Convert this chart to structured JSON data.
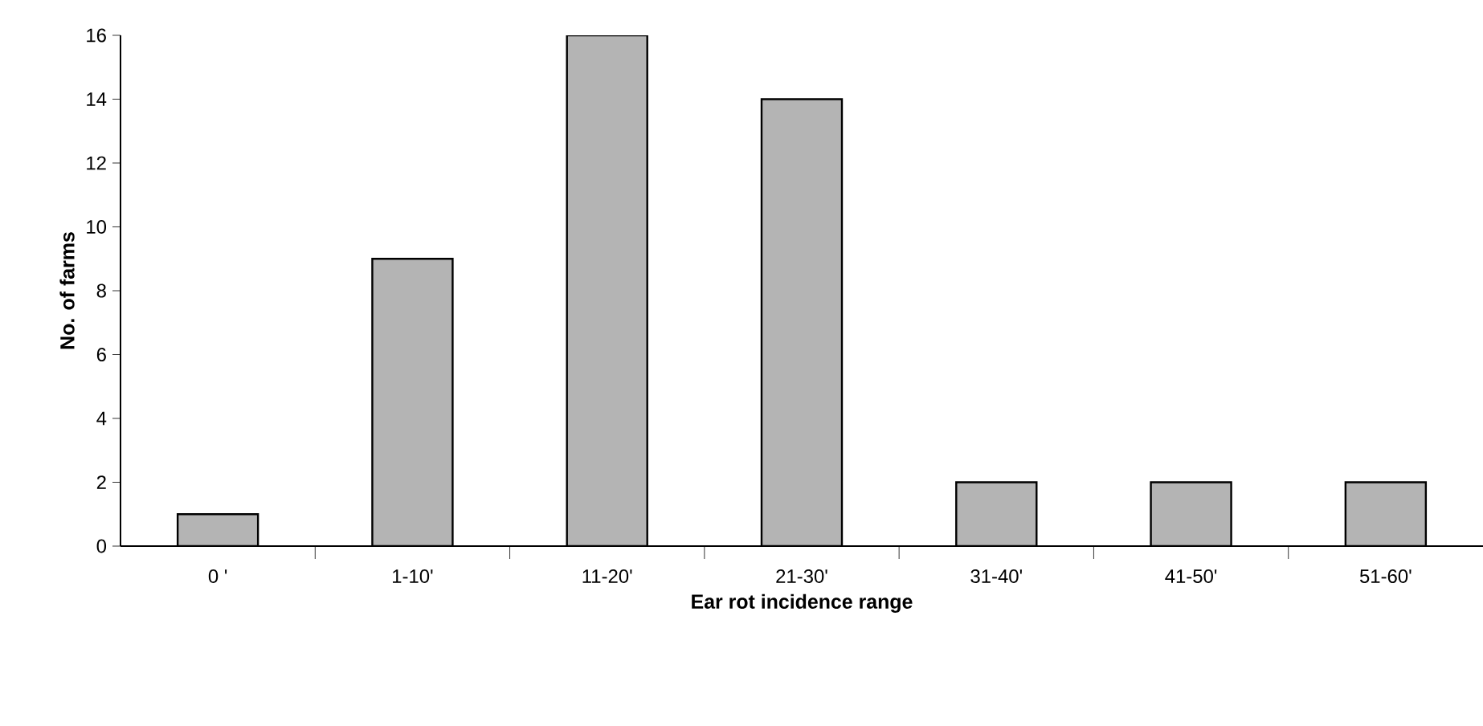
{
  "chart_data": {
    "type": "bar",
    "xlabel": "Ear rot incidence range",
    "ylabel": "No. of farms",
    "categories": [
      "0 '",
      "1-10'",
      "11-20'",
      "21-30'",
      "31-40'",
      "41-50'",
      "51-60'"
    ],
    "values": [
      1,
      9,
      16,
      14,
      2,
      2,
      2
    ],
    "color": "#b4b4b4",
    "ylim": [
      0,
      16
    ],
    "yticks": [
      0,
      2,
      4,
      6,
      8,
      10,
      12,
      14,
      16
    ],
    "grid": false
  }
}
